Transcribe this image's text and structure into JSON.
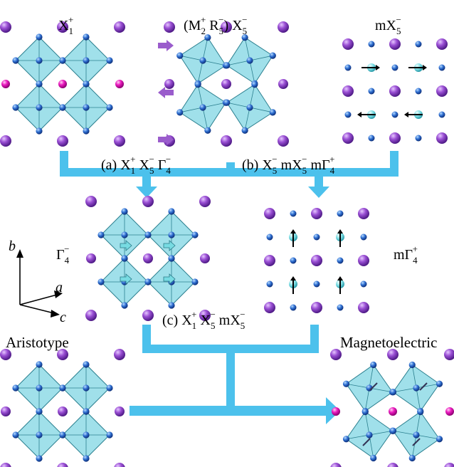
{
  "panels": {
    "x1p": {
      "base": "X",
      "sub": "1",
      "sup": "+"
    },
    "mr_x5": {
      "paren_open": "(M",
      "m_sub": "2",
      "m_sup": "+",
      "r": " R",
      "r_sub": "5",
      "r_sup": "−",
      "paren_close": ") X",
      "x_sub": "5",
      "x_sup": "−"
    },
    "mx5": {
      "base": "mX",
      "sub": "5",
      "sup": "−"
    },
    "gamma4": {
      "base": "Γ",
      "sub": "4",
      "sup": "−"
    },
    "mgamma4": {
      "base": "mΓ",
      "sub": "4",
      "sup": "+"
    },
    "aristotype": "Aristotype",
    "magnetoelectric": "Magnetoelectric"
  },
  "paths": {
    "a": {
      "prefix": "(a) X",
      "t1_sub": "1",
      "t1_sup": "+",
      "t2": " X",
      "t2_sub": "5",
      "t2_sup": "−",
      "t3": " Γ",
      "t3_sub": "4",
      "t3_sup": "−"
    },
    "b": {
      "prefix": "(b) X",
      "t1_sub": "5",
      "t1_sup": "−",
      "t2": " mX",
      "t2_sub": "5",
      "t2_sup": "−",
      "t3": " mΓ",
      "t3_sub": "4",
      "t3_sup": "+"
    },
    "c": {
      "prefix": "(c) X",
      "t1_sub": "1",
      "t1_sup": "+",
      "t2": " X",
      "t2_sub": "5",
      "t2_sup": "−",
      "t3": " mX",
      "t3_sub": "5",
      "t3_sup": "−"
    }
  },
  "axes": {
    "b": "b",
    "a": "a",
    "c": "c"
  },
  "colors": {
    "octahedron": "#8fdbe6",
    "octahedron_edge": "#2b7f8f",
    "b_site": "#2f6fd1",
    "a_site": "#9a4fd4",
    "magnetic_site": "#ec1cc0",
    "moment_site": "#78dbe2",
    "flow_arrow": "#4cc1ec",
    "shift_arrow": "#9a5ccc"
  }
}
